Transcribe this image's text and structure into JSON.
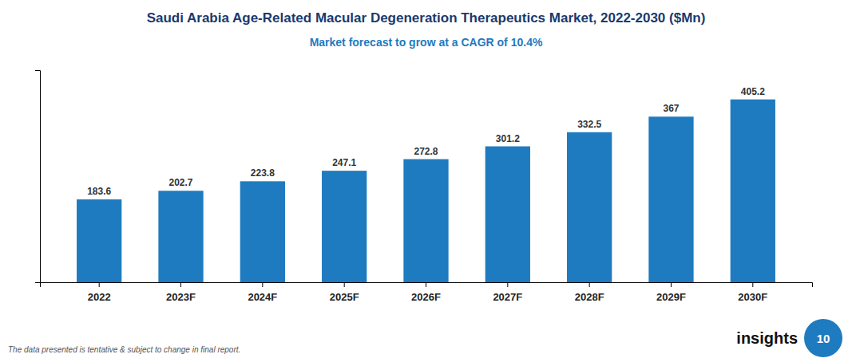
{
  "chart_data": {
    "type": "bar",
    "title": "Saudi Arabia Age-Related Macular Degeneration Therapeutics Market, 2022-2030 ($Mn)",
    "subtitle": "Market forecast to grow at a CAGR of 10.4%",
    "categories": [
      "2022",
      "2023F",
      "2024F",
      "2025F",
      "2026F",
      "2027F",
      "2028F",
      "2029F",
      "2030F"
    ],
    "values": [
      183.6,
      202.7,
      223.8,
      247.1,
      272.8,
      301.2,
      332.5,
      367.0,
      405.2
    ],
    "color": "#1f7bbf",
    "ylim": [
      0,
      470
    ],
    "grid": false,
    "data_labels": true,
    "tick_labels": "x",
    "annotations": [
      "The data presented is tentative & subject to change in final report.",
      "insights",
      "10"
    ]
  }
}
